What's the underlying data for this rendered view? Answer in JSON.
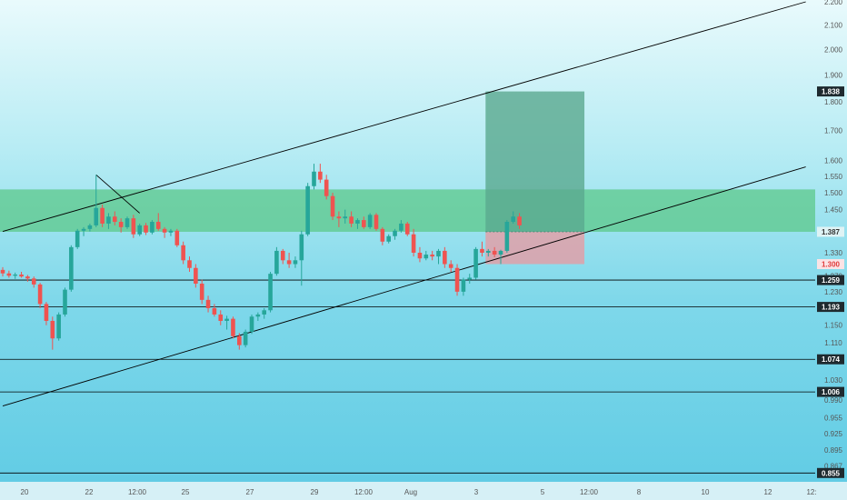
{
  "chart_data": {
    "type": "candlestick",
    "y_scale": "log",
    "ylim": [
      0.84,
      2.2
    ],
    "colors": {
      "up": "#26a69a",
      "down": "#ef5350",
      "zone": "#5cc88a",
      "profit": "#5aa98f",
      "loss": "#e1a0a8",
      "line": "#000000"
    },
    "y_ticks": [
      "2.200",
      "2.100",
      "2.000",
      "1.900",
      "1.800",
      "1.700",
      "1.600",
      "1.550",
      "1.500",
      "1.450",
      "1.330",
      "1.270",
      "1.230",
      "1.190",
      "1.150",
      "1.110",
      "1.030",
      "0.990",
      "0.955",
      "0.925",
      "0.895",
      "0.867"
    ],
    "x_ticks": [
      "20",
      "22",
      "12:00",
      "25",
      "27",
      "29",
      "12:00",
      "Aug",
      "3",
      "5",
      "12:00",
      "8",
      "10",
      "12",
      "12:"
    ],
    "price_tags": [
      {
        "label": "1.838",
        "value": 1.838,
        "style": "dark"
      },
      {
        "label": "1.387",
        "value": 1.387,
        "style": "light"
      },
      {
        "label": "1.300",
        "value": 1.3,
        "style": "red"
      },
      {
        "label": "1.259",
        "value": 1.259,
        "style": "dark"
      },
      {
        "label": "1.193",
        "value": 1.193,
        "style": "dark"
      },
      {
        "label": "1.074",
        "value": 1.074,
        "style": "dark"
      },
      {
        "label": "1.006",
        "value": 1.006,
        "style": "dark"
      },
      {
        "label": "0.855",
        "value": 0.855,
        "style": "dark"
      }
    ],
    "horizontal_lines": [
      1.259,
      1.193,
      1.074,
      1.006,
      0.855
    ],
    "zone": {
      "top": 1.51,
      "bottom": 1.387
    },
    "position": {
      "entry": 1.387,
      "target": 1.838,
      "stop": 1.3,
      "start_bar": 78,
      "end_bar": 93
    },
    "trendlines": [
      {
        "from": [
          0,
          1.388
        ],
        "to": [
          129,
          2.2
        ]
      },
      {
        "from": [
          0,
          0.978
        ],
        "to": [
          129,
          1.58
        ]
      },
      {
        "from": [
          15,
          1.555
        ],
        "to": [
          22,
          1.44
        ]
      }
    ],
    "candles": [
      [
        1.285,
        1.292,
        1.268,
        1.276
      ],
      [
        1.276,
        1.283,
        1.265,
        1.27
      ],
      [
        1.27,
        1.278,
        1.262,
        1.273
      ],
      [
        1.273,
        1.28,
        1.265,
        1.268
      ],
      [
        1.268,
        1.272,
        1.255,
        1.263
      ],
      [
        1.263,
        1.268,
        1.24,
        1.248
      ],
      [
        1.248,
        1.252,
        1.19,
        1.2
      ],
      [
        1.2,
        1.205,
        1.15,
        1.16
      ],
      [
        1.16,
        1.17,
        1.095,
        1.12
      ],
      [
        1.12,
        1.18,
        1.115,
        1.175
      ],
      [
        1.175,
        1.24,
        1.17,
        1.235
      ],
      [
        1.235,
        1.35,
        1.23,
        1.345
      ],
      [
        1.345,
        1.395,
        1.34,
        1.39
      ],
      [
        1.39,
        1.4,
        1.375,
        1.395
      ],
      [
        1.395,
        1.41,
        1.388,
        1.405
      ],
      [
        1.405,
        1.555,
        1.4,
        1.455
      ],
      [
        1.455,
        1.465,
        1.4,
        1.41
      ],
      [
        1.41,
        1.44,
        1.395,
        1.43
      ],
      [
        1.43,
        1.445,
        1.405,
        1.415
      ],
      [
        1.415,
        1.425,
        1.385,
        1.4
      ],
      [
        1.4,
        1.43,
        1.395,
        1.425
      ],
      [
        1.425,
        1.435,
        1.37,
        1.38
      ],
      [
        1.38,
        1.41,
        1.375,
        1.405
      ],
      [
        1.405,
        1.412,
        1.378,
        1.385
      ],
      [
        1.385,
        1.42,
        1.38,
        1.415
      ],
      [
        1.415,
        1.44,
        1.39,
        1.395
      ],
      [
        1.395,
        1.4,
        1.37,
        1.385
      ],
      [
        1.385,
        1.395,
        1.375,
        1.39
      ],
      [
        1.39,
        1.395,
        1.345,
        1.35
      ],
      [
        1.35,
        1.36,
        1.3,
        1.31
      ],
      [
        1.31,
        1.32,
        1.28,
        1.29
      ],
      [
        1.29,
        1.3,
        1.24,
        1.25
      ],
      [
        1.25,
        1.26,
        1.2,
        1.21
      ],
      [
        1.21,
        1.22,
        1.18,
        1.19
      ],
      [
        1.19,
        1.2,
        1.17,
        1.175
      ],
      [
        1.175,
        1.185,
        1.15,
        1.16
      ],
      [
        1.16,
        1.172,
        1.14,
        1.165
      ],
      [
        1.165,
        1.17,
        1.12,
        1.125
      ],
      [
        1.125,
        1.132,
        1.095,
        1.105
      ],
      [
        1.105,
        1.14,
        1.1,
        1.135
      ],
      [
        1.135,
        1.175,
        1.13,
        1.17
      ],
      [
        1.17,
        1.18,
        1.16,
        1.175
      ],
      [
        1.175,
        1.19,
        1.165,
        1.185
      ],
      [
        1.185,
        1.28,
        1.18,
        1.275
      ],
      [
        1.275,
        1.345,
        1.27,
        1.335
      ],
      [
        1.335,
        1.34,
        1.3,
        1.31
      ],
      [
        1.31,
        1.33,
        1.29,
        1.3
      ],
      [
        1.3,
        1.32,
        1.29,
        1.31
      ],
      [
        1.31,
        1.39,
        1.245,
        1.38
      ],
      [
        1.38,
        1.53,
        1.375,
        1.52
      ],
      [
        1.52,
        1.59,
        1.51,
        1.565
      ],
      [
        1.565,
        1.59,
        1.53,
        1.54
      ],
      [
        1.54,
        1.555,
        1.48,
        1.49
      ],
      [
        1.49,
        1.5,
        1.42,
        1.43
      ],
      [
        1.43,
        1.445,
        1.4,
        1.425
      ],
      [
        1.425,
        1.45,
        1.41,
        1.43
      ],
      [
        1.43,
        1.445,
        1.4,
        1.41
      ],
      [
        1.41,
        1.425,
        1.395,
        1.42
      ],
      [
        1.42,
        1.43,
        1.395,
        1.4
      ],
      [
        1.4,
        1.44,
        1.395,
        1.435
      ],
      [
        1.435,
        1.44,
        1.39,
        1.395
      ],
      [
        1.395,
        1.4,
        1.35,
        1.36
      ],
      [
        1.36,
        1.38,
        1.355,
        1.375
      ],
      [
        1.375,
        1.395,
        1.365,
        1.39
      ],
      [
        1.39,
        1.42,
        1.385,
        1.41
      ],
      [
        1.41,
        1.415,
        1.375,
        1.38
      ],
      [
        1.38,
        1.395,
        1.32,
        1.33
      ],
      [
        1.33,
        1.345,
        1.305,
        1.315
      ],
      [
        1.315,
        1.335,
        1.31,
        1.325
      ],
      [
        1.325,
        1.335,
        1.31,
        1.32
      ],
      [
        1.32,
        1.34,
        1.3,
        1.335
      ],
      [
        1.335,
        1.345,
        1.29,
        1.3
      ],
      [
        1.3,
        1.31,
        1.28,
        1.29
      ],
      [
        1.29,
        1.3,
        1.22,
        1.23
      ],
      [
        1.23,
        1.265,
        1.22,
        1.26
      ],
      [
        1.26,
        1.275,
        1.25,
        1.265
      ],
      [
        1.265,
        1.345,
        1.26,
        1.34
      ],
      [
        1.34,
        1.36,
        1.32,
        1.33
      ],
      [
        1.33,
        1.34,
        1.32,
        1.335
      ],
      [
        1.335,
        1.345,
        1.318,
        1.325
      ],
      [
        1.325,
        1.338,
        1.3,
        1.335
      ],
      [
        1.335,
        1.42,
        1.33,
        1.415
      ],
      [
        1.415,
        1.445,
        1.41,
        1.43
      ],
      [
        1.43,
        1.44,
        1.395,
        1.405
      ]
    ]
  }
}
